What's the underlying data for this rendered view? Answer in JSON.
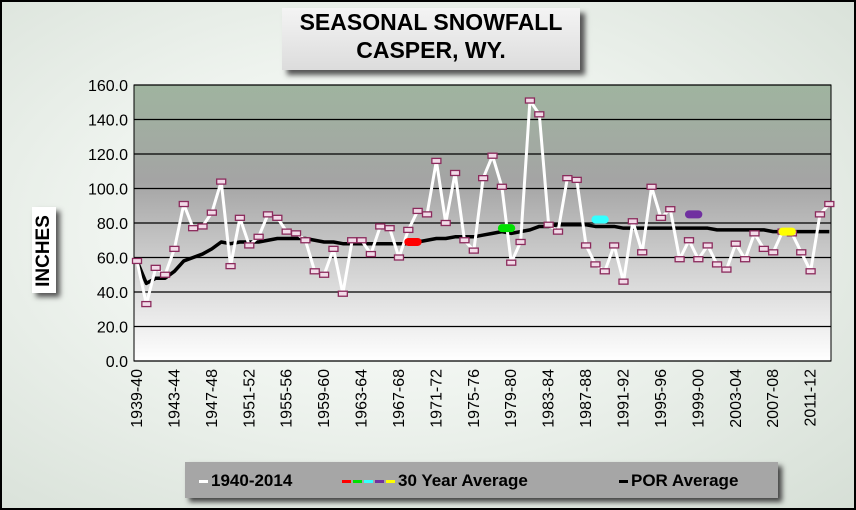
{
  "chart_data": {
    "type": "line",
    "title": "SEASONAL SNOWFALL",
    "subtitle": "CASPER, WY.",
    "ylabel": "INCHES",
    "xlabel": "",
    "ylim": [
      0,
      160
    ],
    "y_ticks": [
      "0.0",
      "20.0",
      "40.0",
      "60.0",
      "80.0",
      "100.0",
      "120.0",
      "140.0",
      "160.0"
    ],
    "x_tick_labels": [
      "1939-40",
      "1943-44",
      "1947-48",
      "1951-52",
      "1955-56",
      "1959-60",
      "1963-64",
      "1967-68",
      "1971-72",
      "1975-76",
      "1979-80",
      "1983-84",
      "1987-88",
      "1991-92",
      "1995-96",
      "1999-00",
      "2003-04",
      "2007-08",
      "2011-12"
    ],
    "first_season": 1939,
    "series": [
      {
        "name": "1940-2014",
        "color": "#ffffff",
        "values": [
          58,
          33,
          54,
          50,
          65,
          91,
          77,
          78,
          86,
          104,
          55,
          83,
          67,
          72,
          85,
          83,
          75,
          74,
          70,
          52,
          50,
          65,
          39,
          70,
          70,
          62,
          78,
          77,
          60,
          76,
          87,
          85,
          116,
          80,
          109,
          70,
          64,
          106,
          119,
          101,
          57,
          69,
          151,
          143,
          79,
          75,
          106,
          105,
          67,
          56,
          52,
          67,
          46,
          81,
          63,
          101,
          83,
          88,
          59,
          70,
          59,
          67,
          56,
          53,
          68,
          59,
          74,
          65,
          63,
          75,
          74,
          63,
          52,
          85,
          91
        ]
      },
      {
        "name": "POR Average",
        "color": "#000000",
        "values": [
          58,
          45,
          48,
          48,
          52,
          58,
          60,
          62,
          65,
          69,
          68,
          69,
          69,
          69,
          70,
          71,
          71,
          71,
          71,
          70,
          69,
          69,
          68,
          68,
          68,
          68,
          68,
          68,
          68,
          68,
          69,
          70,
          71,
          71,
          72,
          72,
          72,
          73,
          74,
          75,
          74,
          75,
          76,
          78,
          78,
          79,
          79,
          79,
          79,
          78,
          78,
          78,
          77,
          77,
          77,
          77,
          77,
          77,
          77,
          77,
          77,
          77,
          76,
          76,
          76,
          76,
          76,
          76,
          75,
          75,
          75,
          75,
          75,
          75,
          75
        ]
      }
    ],
    "thirty_year_average": {
      "label": "30 Year Average",
      "markers": [
        {
          "period_start": "1968-69",
          "period_end": "1969-70",
          "value": 69,
          "color": "#ff0000"
        },
        {
          "period_start": "1978-79",
          "period_end": "1979-80",
          "value": 77,
          "color": "#00e000"
        },
        {
          "period_start": "1988-89",
          "period_end": "1989-90",
          "value": 82,
          "color": "#33ffff"
        },
        {
          "period_start": "1998-99",
          "period_end": "1999-00",
          "value": 85,
          "color": "#7030a0"
        },
        {
          "period_start": "2008-09",
          "period_end": "2009-10",
          "value": 75,
          "color": "#ffff00"
        }
      ]
    },
    "legend": {
      "placement": "bottom",
      "items": [
        "1940-2014",
        "30 Year Average",
        "POR Average"
      ]
    },
    "grid": true
  }
}
